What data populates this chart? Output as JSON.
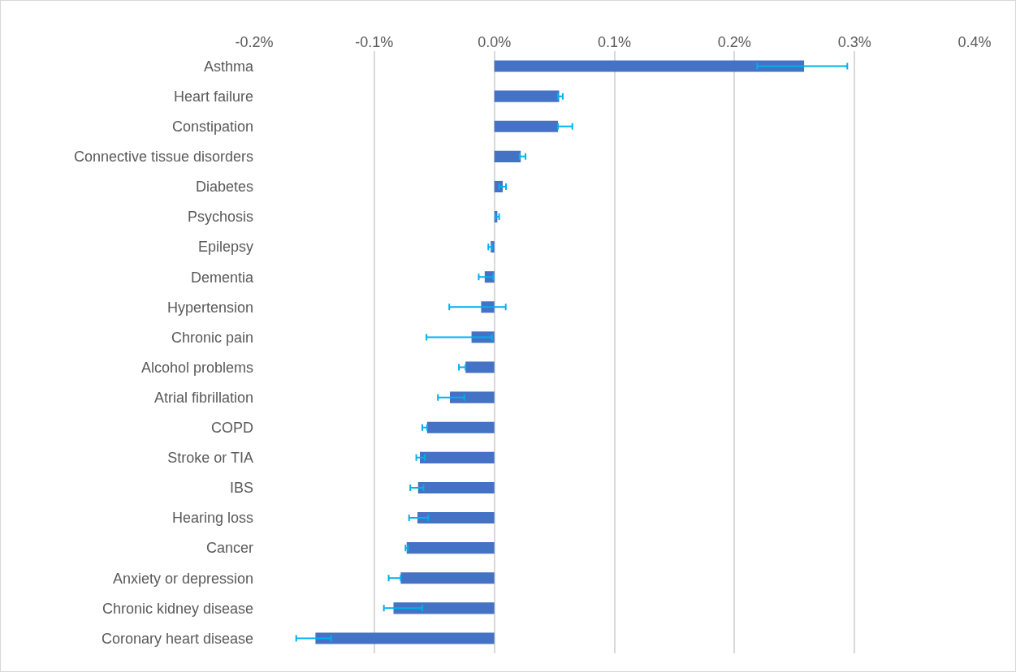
{
  "chart_data": {
    "type": "bar",
    "orientation": "horizontal",
    "categories": [
      "Asthma",
      "Heart failure",
      "Constipation",
      "Connective tissue disorders",
      "Diabetes",
      "Psychosis",
      "Epilepsy",
      "Dementia",
      "Hypertension",
      "Chronic pain",
      "Alcohol problems",
      "Atrial fibrillation",
      "COPD",
      "Stroke or TIA",
      "IBS",
      "Hearing loss",
      "Cancer",
      "Anxiety or depression",
      "Chronic kidney disease",
      "Coronary heart disease"
    ],
    "values": [
      0.258,
      0.054,
      0.053,
      0.022,
      0.007,
      0.0025,
      -0.003,
      -0.008,
      -0.011,
      -0.019,
      -0.024,
      -0.037,
      -0.056,
      -0.062,
      -0.0635,
      -0.064,
      -0.073,
      -0.078,
      -0.084,
      -0.149
    ],
    "errors": [
      [
        0.219,
        0.294
      ],
      [
        0.053,
        0.057
      ],
      [
        0.053,
        0.065
      ],
      [
        0.021,
        0.026
      ],
      [
        0.004,
        0.0097
      ],
      [
        0.001,
        0.004
      ],
      [
        -0.005,
        -0.002
      ],
      [
        -0.013,
        -0.001
      ],
      [
        -0.0375,
        0.0095
      ],
      [
        -0.0565,
        -0.002
      ],
      [
        -0.0295,
        -0.024
      ],
      [
        -0.047,
        -0.025
      ],
      [
        -0.06,
        -0.056
      ],
      [
        -0.065,
        -0.058
      ],
      [
        -0.07,
        -0.059
      ],
      [
        -0.071,
        -0.055
      ],
      [
        -0.074,
        -0.072
      ],
      [
        -0.088,
        -0.078
      ],
      [
        -0.092,
        -0.06
      ],
      [
        -0.165,
        -0.136
      ]
    ],
    "color": "#4472c4",
    "xlim": [
      -0.2,
      0.4
    ],
    "xticks": [
      {
        "value": -0.2,
        "label": "-0.2%"
      },
      {
        "value": -0.1,
        "label": "-0.1%"
      },
      {
        "value": 0,
        "label": "0.0%"
      },
      {
        "value": 0.1,
        "label": "0.1%"
      },
      {
        "value": 0.2,
        "label": "0.2%"
      },
      {
        "value": 0.3,
        "label": "0.3%"
      },
      {
        "value": 0.4,
        "label": "0.4%"
      }
    ],
    "grid": "x"
  }
}
